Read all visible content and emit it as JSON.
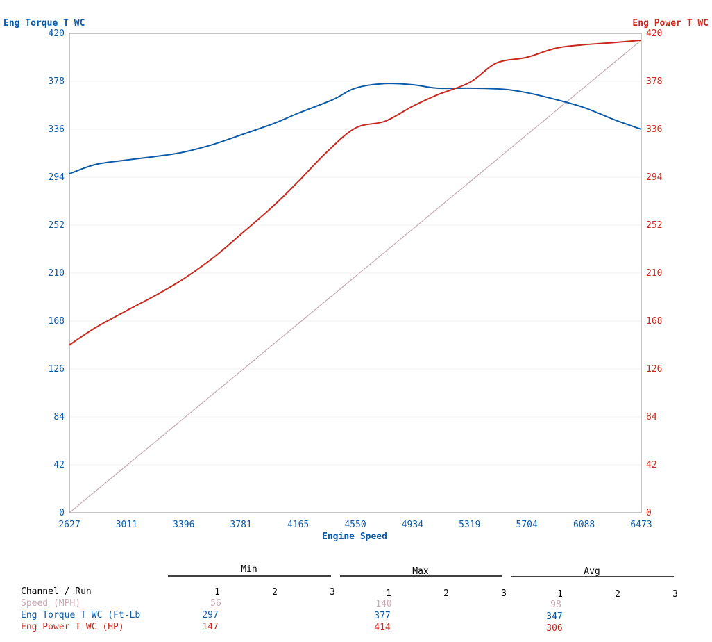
{
  "colors": {
    "torque": "#0a5aa8",
    "power": "#c8281e",
    "speed": "#c8a8b4",
    "frame": "#888888",
    "text": "#000000"
  },
  "chart_data": {
    "type": "line",
    "xlabel": "Engine Speed",
    "x_ticks": [
      "2627",
      "3011",
      "3396",
      "3781",
      "4165",
      "4550",
      "4934",
      "5319",
      "5704",
      "6088",
      "6473"
    ],
    "xlim": [
      2627,
      6473
    ],
    "left_axis": {
      "title": "Eng Torque T WC",
      "ylim": [
        0,
        420
      ],
      "ticks": [
        "420",
        "378",
        "336",
        "294",
        "252",
        "210",
        "168",
        "126",
        "84",
        "42",
        "0"
      ]
    },
    "right_axis": {
      "title": "Eng Power T WC",
      "ylim": [
        0,
        420
      ],
      "ticks": [
        "420",
        "378",
        "336",
        "294",
        "252",
        "210",
        "168",
        "126",
        "84",
        "42",
        "0"
      ]
    },
    "series": [
      {
        "name": "Eng Torque T WC (Ft-Lb",
        "axis": "left",
        "x": [
          2627,
          2800,
          3011,
          3200,
          3396,
          3600,
          3781,
          4000,
          4165,
          4400,
          4550,
          4750,
          4934,
          5100,
          5319,
          5550,
          5704,
          5900,
          6088,
          6300,
          6473
        ],
        "y": [
          297,
          305,
          309,
          312,
          316,
          323,
          331,
          341,
          350,
          362,
          372,
          376,
          375,
          372,
          372,
          371,
          368,
          362,
          355,
          344,
          336
        ]
      },
      {
        "name": "Eng Power T WC (HP)",
        "axis": "right",
        "x": [
          2627,
          2800,
          3011,
          3200,
          3396,
          3600,
          3781,
          4000,
          4165,
          4350,
          4550,
          4750,
          4934,
          5100,
          5319,
          5500,
          5704,
          5900,
          6088,
          6300,
          6473
        ],
        "y": [
          147,
          162,
          177,
          190,
          205,
          224,
          244,
          269,
          290,
          315,
          337,
          343,
          356,
          366,
          377,
          394,
          399,
          407,
          410,
          412,
          414
        ]
      },
      {
        "name": "Speed (MPH)",
        "axis": "right",
        "x": [
          2627,
          6473
        ],
        "y": [
          0,
          414
        ]
      }
    ]
  },
  "table": {
    "group_headers": [
      "Min",
      "Max",
      "Avg"
    ],
    "channel_header": "Channel / Run",
    "run_labels": [
      "1",
      "2",
      "3"
    ],
    "rows": [
      {
        "label": "Speed (MPH)",
        "color_key": "speed",
        "min": "56",
        "max": "140",
        "avg": "98"
      },
      {
        "label": "Eng Torque T WC (Ft-Lb",
        "color_key": "torque",
        "min": "297",
        "max": "377",
        "avg": "347"
      },
      {
        "label": "Eng Power T WC (HP)",
        "color_key": "power",
        "min": "147",
        "max": "414",
        "avg": "306"
      }
    ]
  }
}
